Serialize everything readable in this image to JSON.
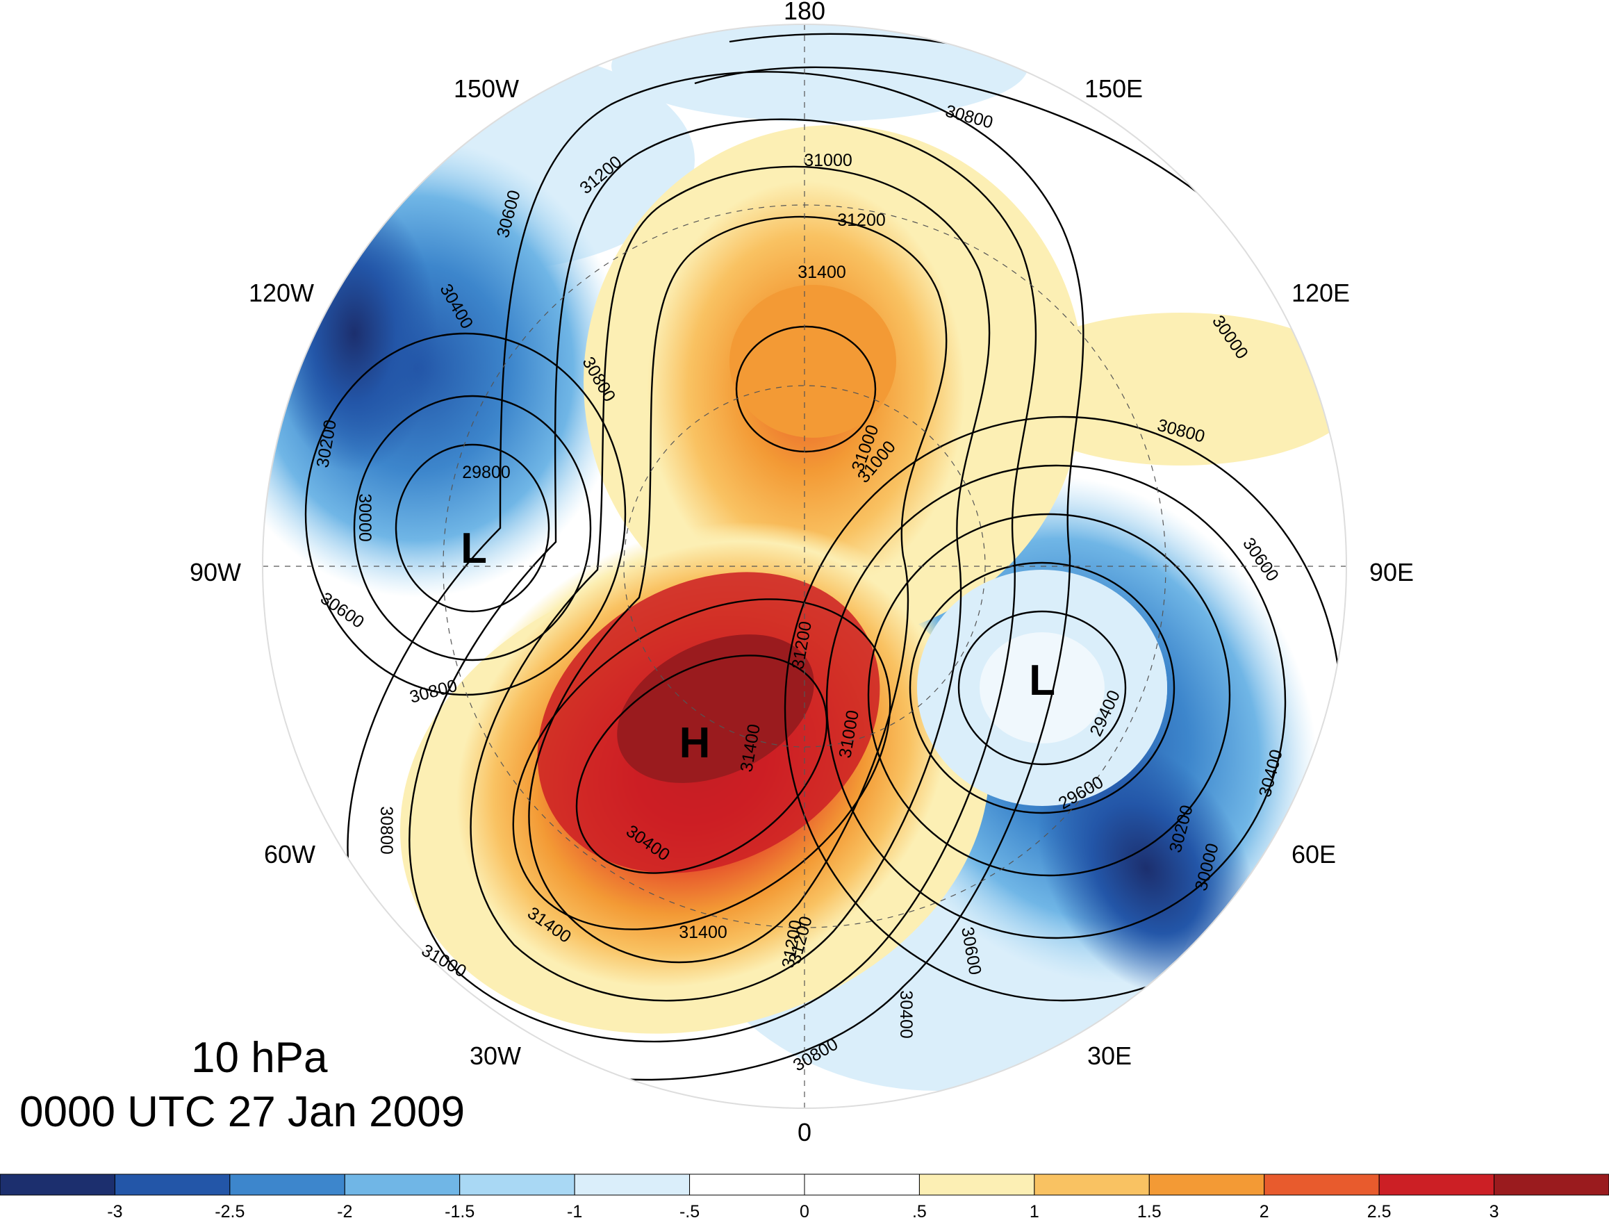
{
  "map": {
    "projection": "north polar stereographic",
    "center_longitude_at_bottom": "0",
    "longitude_labels": [
      "180",
      "150E",
      "120E",
      "90E",
      "60E",
      "30E",
      "0",
      "30W",
      "60W",
      "90W",
      "120W",
      "150W"
    ],
    "contour_labels": [
      "31000",
      "31200",
      "31400",
      "30800",
      "30600",
      "30400",
      "30200",
      "30000",
      "29800",
      "29600",
      "29400",
      "31400",
      "31200",
      "31000",
      "30800",
      "30600",
      "30400",
      "30200",
      "30000",
      "30800",
      "31000",
      "31200",
      "30800",
      "30600",
      "30400",
      "31400",
      "31400",
      "31200",
      "31000",
      "30800",
      "30600",
      "30400",
      "30000",
      "31000",
      "31200",
      "30800"
    ],
    "centers": [
      {
        "label": "H",
        "color": "#000000"
      },
      {
        "label": "L",
        "color": "#000000"
      },
      {
        "label": "L",
        "color": "#000000"
      }
    ]
  },
  "caption": {
    "level": "10 hPa",
    "time": "0000 UTC 27 Jan 2009"
  },
  "colorbar": {
    "tick_labels": [
      "-3",
      "-2.5",
      "-2",
      "-1.5",
      "-1",
      "-.5",
      "0",
      ".5",
      "1",
      "1.5",
      "2",
      "2.5",
      "3"
    ],
    "colors": [
      "#1c2f6e",
      "#2356a8",
      "#3d86cc",
      "#70b6e6",
      "#a9d8f4",
      "#daeefa",
      "#ffffff",
      "#ffffff",
      "#fcefb4",
      "#f9c262",
      "#f39a35",
      "#e85b2d",
      "#cc1f25",
      "#9a1b1e"
    ]
  }
}
